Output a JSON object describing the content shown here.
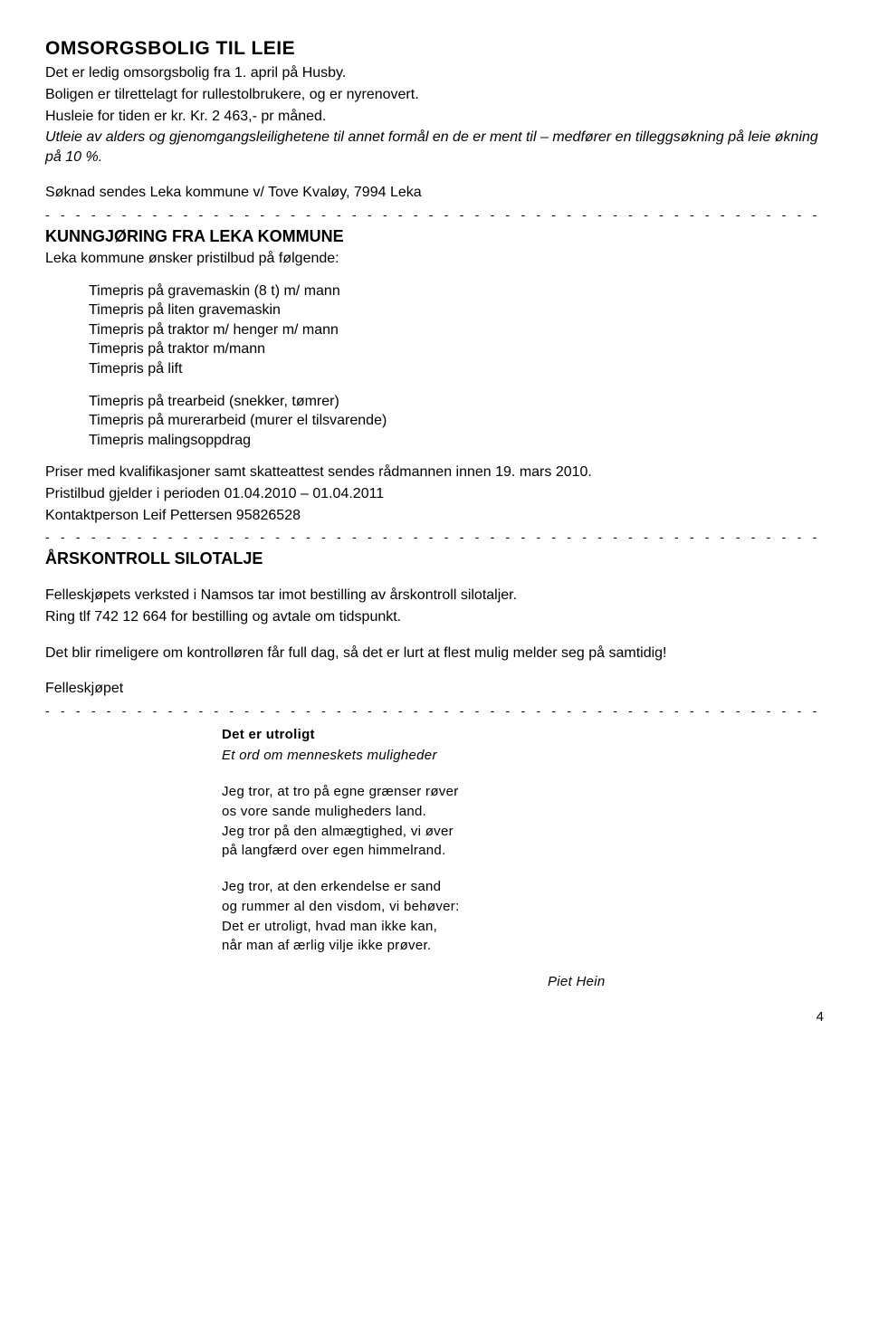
{
  "section1": {
    "title": "OMSORGSBOLIG TIL LEIE",
    "p1": "Det er ledig omsorgsbolig fra 1. april på Husby.",
    "p2": "Boligen er tilrettelagt for rullestolbrukere, og er nyrenovert.",
    "p3": "Husleie for tiden er kr. Kr. 2 463,- pr måned.",
    "p4": "Utleie av alders og gjenomgangsleilighetene til annet formål en de er ment til – medfører en tilleggsøkning på leie økning på 10 %.",
    "p5": "Søknad sendes Leka kommune v/ Tove Kvaløy, 7994 Leka"
  },
  "divider": "- - - - - - - - - - - - - - - - - - - - - - - - - - - - - - - - - - - - - - - - - - - - - - - - - - - - - - - - - - - - - - - - - - - - - - - - - - - - - - - - - -",
  "section2": {
    "title": "KUNNGJØRING FRA LEKA KOMMUNE",
    "intro": " Leka kommune ønsker pristilbud på følgende:",
    "listA": [
      "Timepris på gravemaskin (8 t) m/ mann",
      "Timepris på liten gravemaskin",
      "Timepris på traktor m/ henger m/ mann",
      "Timepris på traktor m/mann",
      "Timepris på lift"
    ],
    "listB": [
      "Timepris på trearbeid (snekker, tømrer)",
      "Timepris på murerarbeid (murer el tilsvarende)",
      "Timepris malingsoppdrag"
    ],
    "p6": "Priser med kvalifikasjoner samt skatteattest sendes rådmannen innen 19. mars 2010.",
    "p7": "Pristilbud gjelder i perioden 01.04.2010 – 01.04.2011",
    "p8": "Kontaktperson Leif Pettersen 95826528"
  },
  "section3": {
    "title": "ÅRSKONTROLL SILOTALJE",
    "p1": "Felleskjøpets verksted i Namsos tar imot bestilling av årskontroll silotaljer.",
    "p2": "Ring tlf 742 12 664 for bestilling og avtale om tidspunkt.",
    "p3": "Det blir rimeligere om kontrolløren får full dag, så det er lurt at flest mulig melder seg på samtidig!",
    "p4": "Felleskjøpet"
  },
  "poem": {
    "title": "Det er utroligt",
    "subtitle": "Et ord om menneskets muligheder",
    "stanza1": [
      "Jeg tror, at tro på egne grænser røver",
      "os vore sande muligheders land.",
      "Jeg tror på den almægtighed, vi øver",
      "på langfærd over egen himmelrand."
    ],
    "stanza2": [
      "Jeg tror, at den erkendelse er sand",
      "og rummer al den visdom, vi behøver:",
      "Det er utroligt, hvad man ikke kan,",
      "når man af ærlig vilje ikke prøver."
    ],
    "author": "Piet Hein"
  },
  "pageNumber": "4"
}
